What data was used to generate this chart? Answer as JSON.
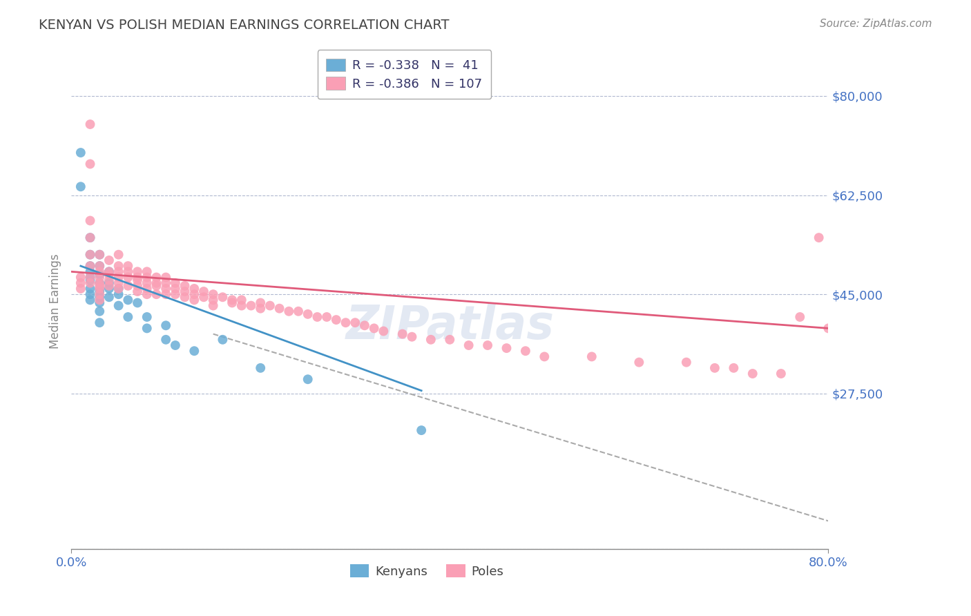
{
  "title": "KENYAN VS POLISH MEDIAN EARNINGS CORRELATION CHART",
  "source_text": "Source: ZipAtlas.com",
  "xlabel": "",
  "ylabel": "Median Earnings",
  "xlim": [
    0.0,
    0.8
  ],
  "ylim": [
    0,
    87500
  ],
  "yticks": [
    0,
    27500,
    45000,
    62500,
    80000
  ],
  "ytick_labels": [
    "",
    "$27,500",
    "$45,000",
    "$62,500",
    "$80,000"
  ],
  "xticks": [
    0.0,
    0.8
  ],
  "xtick_labels": [
    "0.0%",
    "80.0%"
  ],
  "kenyan_color": "#6baed6",
  "polish_color": "#fa9fb5",
  "kenyan_line_color": "#4292c6",
  "polish_line_color": "#e05a7a",
  "dashed_line_color": "#aaaaaa",
  "title_color": "#444444",
  "axis_label_color": "#4472c4",
  "ytick_color": "#4472c4",
  "r_kenyan": -0.338,
  "n_kenyan": 41,
  "r_polish": -0.386,
  "n_polish": 107,
  "kenyan_scatter_x": [
    0.01,
    0.01,
    0.02,
    0.02,
    0.02,
    0.02,
    0.02,
    0.02,
    0.02,
    0.02,
    0.02,
    0.03,
    0.03,
    0.03,
    0.03,
    0.03,
    0.03,
    0.03,
    0.03,
    0.03,
    0.03,
    0.04,
    0.04,
    0.04,
    0.04,
    0.05,
    0.05,
    0.05,
    0.06,
    0.06,
    0.07,
    0.08,
    0.08,
    0.1,
    0.1,
    0.11,
    0.13,
    0.16,
    0.2,
    0.25,
    0.37
  ],
  "kenyan_scatter_y": [
    70000,
    64000,
    55000,
    52000,
    50000,
    49000,
    48000,
    47500,
    46000,
    45000,
    44000,
    52000,
    50000,
    48500,
    47000,
    46000,
    45500,
    44500,
    43500,
    42000,
    40000,
    49000,
    47000,
    46000,
    44500,
    46000,
    45000,
    43000,
    44000,
    41000,
    43500,
    41000,
    39000,
    39500,
    37000,
    36000,
    35000,
    37000,
    32000,
    30000,
    21000
  ],
  "polish_scatter_x": [
    0.01,
    0.01,
    0.01,
    0.02,
    0.02,
    0.02,
    0.02,
    0.02,
    0.02,
    0.02,
    0.02,
    0.03,
    0.03,
    0.03,
    0.03,
    0.03,
    0.03,
    0.03,
    0.03,
    0.03,
    0.04,
    0.04,
    0.04,
    0.04,
    0.04,
    0.05,
    0.05,
    0.05,
    0.05,
    0.05,
    0.05,
    0.06,
    0.06,
    0.06,
    0.06,
    0.07,
    0.07,
    0.07,
    0.07,
    0.07,
    0.08,
    0.08,
    0.08,
    0.08,
    0.08,
    0.09,
    0.09,
    0.09,
    0.09,
    0.1,
    0.1,
    0.1,
    0.1,
    0.11,
    0.11,
    0.11,
    0.12,
    0.12,
    0.12,
    0.13,
    0.13,
    0.13,
    0.14,
    0.14,
    0.15,
    0.15,
    0.15,
    0.16,
    0.17,
    0.17,
    0.18,
    0.18,
    0.19,
    0.2,
    0.2,
    0.21,
    0.22,
    0.23,
    0.24,
    0.25,
    0.26,
    0.27,
    0.28,
    0.29,
    0.3,
    0.31,
    0.32,
    0.33,
    0.35,
    0.36,
    0.38,
    0.4,
    0.42,
    0.44,
    0.46,
    0.48,
    0.5,
    0.55,
    0.6,
    0.65,
    0.68,
    0.7,
    0.72,
    0.75,
    0.77,
    0.79,
    0.8
  ],
  "polish_scatter_y": [
    48000,
    47000,
    46000,
    75000,
    68000,
    58000,
    55000,
    52000,
    50000,
    48000,
    47000,
    52000,
    50000,
    49000,
    48000,
    47000,
    46500,
    46000,
    45000,
    44000,
    51000,
    49000,
    48500,
    47500,
    46500,
    52000,
    50000,
    49000,
    48000,
    47000,
    46000,
    50000,
    49000,
    48000,
    46500,
    49000,
    48000,
    47500,
    46500,
    45500,
    49000,
    48000,
    47000,
    46000,
    45000,
    48000,
    47000,
    46500,
    45000,
    48000,
    47000,
    46000,
    45000,
    47000,
    46000,
    45000,
    46500,
    45500,
    44500,
    46000,
    45000,
    44000,
    45500,
    44500,
    45000,
    44000,
    43000,
    44500,
    44000,
    43500,
    44000,
    43000,
    43000,
    43500,
    42500,
    43000,
    42500,
    42000,
    42000,
    41500,
    41000,
    41000,
    40500,
    40000,
    40000,
    39500,
    39000,
    38500,
    38000,
    37500,
    37000,
    37000,
    36000,
    36000,
    35500,
    35000,
    34000,
    34000,
    33000,
    33000,
    32000,
    32000,
    31000,
    31000,
    41000,
    55000,
    39000
  ],
  "kenyan_line_x": [
    0.01,
    0.37
  ],
  "kenyan_line_y": [
    50000,
    28000
  ],
  "polish_line_x": [
    0.0,
    0.8
  ],
  "polish_line_y": [
    49000,
    39000
  ],
  "dashed_line_x": [
    0.15,
    0.8
  ],
  "dashed_line_y": [
    38000,
    5000
  ],
  "background_color": "#ffffff",
  "grid_color": "#b0b8d0",
  "watermark_text": "ZIPatlas",
  "watermark_color": "#c8d4e8"
}
